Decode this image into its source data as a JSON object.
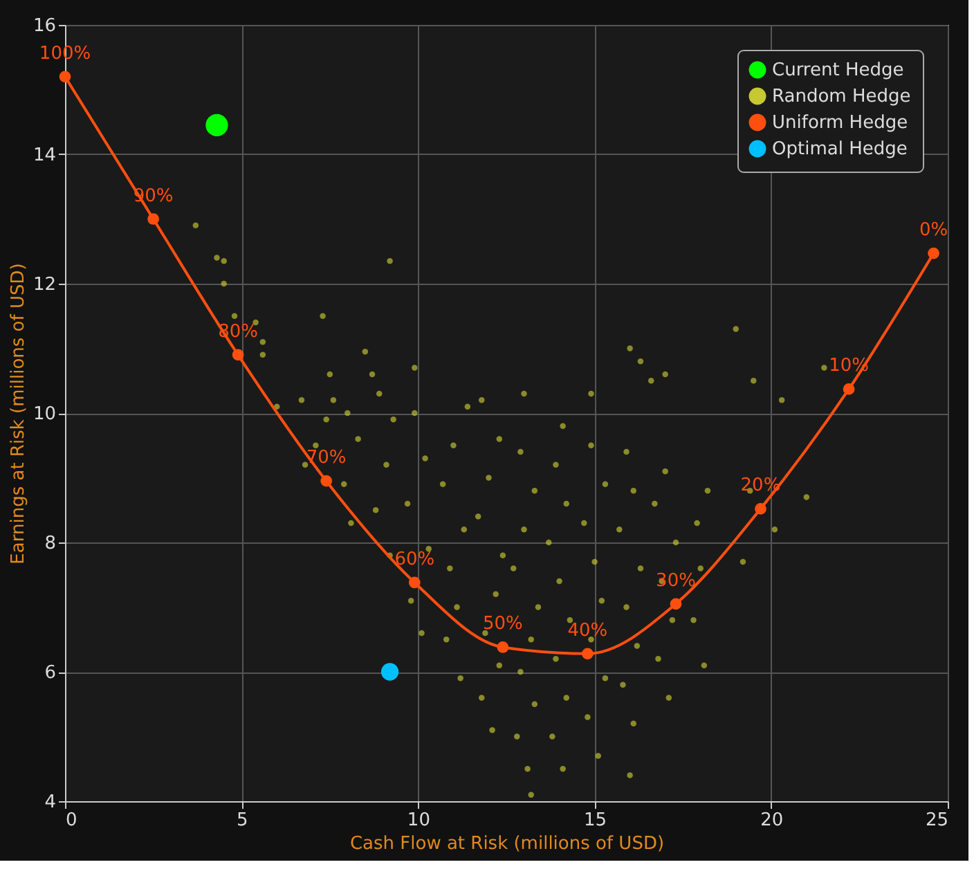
{
  "chart_data": {
    "type": "scatter",
    "xlabel": "Cash Flow at Risk (millions of USD)",
    "ylabel": "Earnings at Risk (millions of USD)",
    "xlim": [
      0,
      25
    ],
    "ylim": [
      4,
      16
    ],
    "xticks": [
      0,
      5,
      10,
      15,
      20,
      25
    ],
    "yticks": [
      4,
      6,
      8,
      10,
      12,
      14,
      16
    ],
    "grid": true,
    "legend": "top right",
    "series": [
      {
        "name": "Current Hedge",
        "color": "#00ff00",
        "x": [
          4.3
        ],
        "values": [
          14.45
        ]
      },
      {
        "name": "Random Hedge",
        "color": "#c8c832",
        "x": [
          3.7,
          4.3,
          4.5,
          4.5,
          4.8,
          5.4,
          5.6,
          5.6,
          7.3,
          9.2,
          7.5,
          8.5,
          8.7,
          9.9,
          6.7,
          6.0,
          7.6,
          13.0,
          14.9,
          16.0,
          16.3,
          16.6,
          17.0,
          19.0,
          19.5,
          20.3,
          21.5,
          21.0,
          20.1,
          19.2,
          19.4,
          7.1,
          7.4,
          6.8,
          8.1,
          7.9,
          8.3,
          8.0,
          9.2,
          8.8,
          9.1,
          9.3,
          8.9,
          10.1,
          9.8,
          10.3,
          9.7,
          10.2,
          9.9,
          11.2,
          10.8,
          11.1,
          10.9,
          11.3,
          10.7,
          11.0,
          11.4,
          12.1,
          11.8,
          12.3,
          11.9,
          12.2,
          12.4,
          11.7,
          12.0,
          12.3,
          11.8,
          13.1,
          12.8,
          13.3,
          12.9,
          13.2,
          13.4,
          12.7,
          13.0,
          13.3,
          12.9,
          14.1,
          13.8,
          14.2,
          13.9,
          14.3,
          14.0,
          13.7,
          14.2,
          13.9,
          14.1,
          15.1,
          14.8,
          15.3,
          14.9,
          15.2,
          15.0,
          14.7,
          15.3,
          14.9,
          16.1,
          15.8,
          16.2,
          15.9,
          16.3,
          15.7,
          16.1,
          15.9,
          17.1,
          16.8,
          17.2,
          16.9,
          17.3,
          16.7,
          17.0,
          18.1,
          17.8,
          18.0,
          17.9,
          18.2,
          13.2,
          16.0
        ],
        "values": [
          12.9,
          12.4,
          12.35,
          12.0,
          11.5,
          11.4,
          11.1,
          10.9,
          11.5,
          12.35,
          10.6,
          10.95,
          10.6,
          10.7,
          10.2,
          10.1,
          10.2,
          10.3,
          10.3,
          11.0,
          10.8,
          10.5,
          10.6,
          11.3,
          10.5,
          10.2,
          10.7,
          8.7,
          8.2,
          7.7,
          8.8,
          9.5,
          9.9,
          9.2,
          8.3,
          8.9,
          9.6,
          10.0,
          7.8,
          8.5,
          9.2,
          9.9,
          10.3,
          6.6,
          7.1,
          7.9,
          8.6,
          9.3,
          10.0,
          5.9,
          6.5,
          7.0,
          7.6,
          8.2,
          8.9,
          9.5,
          10.1,
          5.1,
          5.6,
          6.1,
          6.6,
          7.2,
          7.8,
          8.4,
          9.0,
          9.6,
          10.2,
          4.5,
          5.0,
          5.5,
          6.0,
          6.5,
          7.0,
          7.6,
          8.2,
          8.8,
          9.4,
          4.5,
          5.0,
          5.6,
          6.2,
          6.8,
          7.4,
          8.0,
          8.6,
          9.2,
          9.8,
          4.7,
          5.3,
          5.9,
          6.5,
          7.1,
          7.7,
          8.3,
          8.9,
          9.5,
          5.2,
          5.8,
          6.4,
          7.0,
          7.6,
          8.2,
          8.8,
          9.4,
          5.6,
          6.2,
          6.8,
          7.4,
          8.0,
          8.6,
          9.1,
          6.1,
          6.8,
          7.6,
          8.3,
          8.8,
          4.1,
          4.4
        ]
      },
      {
        "name": "Uniform Hedge",
        "type": "line",
        "marker": "circle",
        "color": "#ff4f0f",
        "x": [
          0,
          2.5,
          4.9,
          7.4,
          9.9,
          12.4,
          14.8,
          17.3,
          19.7,
          22.2,
          24.6
        ],
        "values": [
          15.2,
          13.0,
          10.9,
          8.95,
          7.38,
          6.38,
          6.28,
          7.05,
          8.52,
          10.37,
          12.47
        ]
      },
      {
        "name": "Optimal Hedge",
        "color": "#00bfff",
        "x": [
          9.2
        ],
        "values": [
          6.0
        ]
      }
    ],
    "annotations": [
      {
        "text": "100%",
        "x": 0,
        "y": 15.2
      },
      {
        "text": "90%",
        "x": 2.5,
        "y": 13.0
      },
      {
        "text": "80%",
        "x": 4.9,
        "y": 10.9
      },
      {
        "text": "70%",
        "x": 7.4,
        "y": 8.95
      },
      {
        "text": "60%",
        "x": 9.9,
        "y": 7.38
      },
      {
        "text": "50%",
        "x": 12.4,
        "y": 6.38
      },
      {
        "text": "40%",
        "x": 14.8,
        "y": 6.28
      },
      {
        "text": "30%",
        "x": 17.3,
        "y": 7.05
      },
      {
        "text": "20%",
        "x": 19.7,
        "y": 8.52
      },
      {
        "text": "10%",
        "x": 22.2,
        "y": 10.37
      },
      {
        "text": "0%",
        "x": 24.6,
        "y": 12.47
      }
    ]
  }
}
